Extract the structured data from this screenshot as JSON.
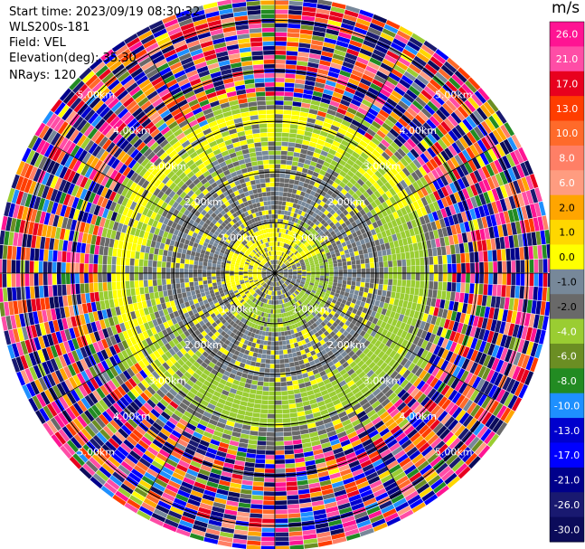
{
  "header": {
    "start_time": "Start time: 2023/09/19 08:30:32",
    "instrument": "WLS200s-181",
    "field": "Field: VEL",
    "elevation": "Elevation(deg): 35.30",
    "nrays": "NRays: 120"
  },
  "chart_data": {
    "type": "heatmap",
    "projection": "polar-ppi",
    "field": "VEL",
    "units": "m/s",
    "nrays": 120,
    "range_rings_km": [
      1.0,
      2.0,
      3.0,
      4.0,
      5.0
    ],
    "ring_label_text": [
      "1.00km",
      "2.00km",
      "3.00km",
      "4.00km",
      "5.00km"
    ],
    "radial_lines": 12,
    "colorbar": {
      "title": "m/s",
      "tick_labels": [
        "26.0",
        "21.0",
        "17.0",
        "13.0",
        "10.0",
        "8.0",
        "6.0",
        "2.0",
        "1.0",
        "0.0",
        "-1.0",
        "-2.0",
        "-4.0",
        "-6.0",
        "-8.0",
        "-10.0",
        "-13.0",
        "-17.0",
        "-21.0",
        "-26.0",
        "-30.0"
      ],
      "bins": [
        {
          "from": 26.0,
          "to": 30.0,
          "color": "#ff1493"
        },
        {
          "from": 21.0,
          "to": 26.0,
          "color": "#ff4da6"
        },
        {
          "from": 17.0,
          "to": 21.0,
          "color": "#e8001e"
        },
        {
          "from": 13.0,
          "to": 17.0,
          "color": "#ff3d00"
        },
        {
          "from": 10.0,
          "to": 13.0,
          "color": "#ff6a2a"
        },
        {
          "from": 8.0,
          "to": 10.0,
          "color": "#ff7f66"
        },
        {
          "from": 6.0,
          "to": 8.0,
          "color": "#ff9c80"
        },
        {
          "from": 2.0,
          "to": 6.0,
          "color": "#ffa500"
        },
        {
          "from": 1.0,
          "to": 2.0,
          "color": "#ffd700"
        },
        {
          "from": 0.0,
          "to": 1.0,
          "color": "#ffff00"
        },
        {
          "from": -1.0,
          "to": 0.0,
          "color": "#778899"
        },
        {
          "from": -2.0,
          "to": -1.0,
          "color": "#696969"
        },
        {
          "from": -4.0,
          "to": -2.0,
          "color": "#9acd32"
        },
        {
          "from": -6.0,
          "to": -4.0,
          "color": "#6b8e23"
        },
        {
          "from": -8.0,
          "to": -6.0,
          "color": "#228b22"
        },
        {
          "from": -10.0,
          "to": -8.0,
          "color": "#1e90ff"
        },
        {
          "from": -13.0,
          "to": -10.0,
          "color": "#0000cd"
        },
        {
          "from": -17.0,
          "to": -13.0,
          "color": "#0000ff"
        },
        {
          "from": -21.0,
          "to": -17.0,
          "color": "#00008b"
        },
        {
          "from": -26.0,
          "to": -21.0,
          "color": "#191970"
        },
        {
          "from": -30.0,
          "to": -26.0,
          "color": "#0b0b5a"
        }
      ]
    },
    "inner_pattern": {
      "near_zero_ring_km": [
        0,
        3.0
      ],
      "green_arc_bands_km": [
        [
          0.6,
          1.2
        ],
        [
          2.3,
          3.1
        ]
      ],
      "yellow_arc_bands_km": [
        [
          0.3,
          0.95
        ],
        [
          2.6,
          3.4
        ]
      ],
      "noise_begins_km": 3.2
    }
  }
}
